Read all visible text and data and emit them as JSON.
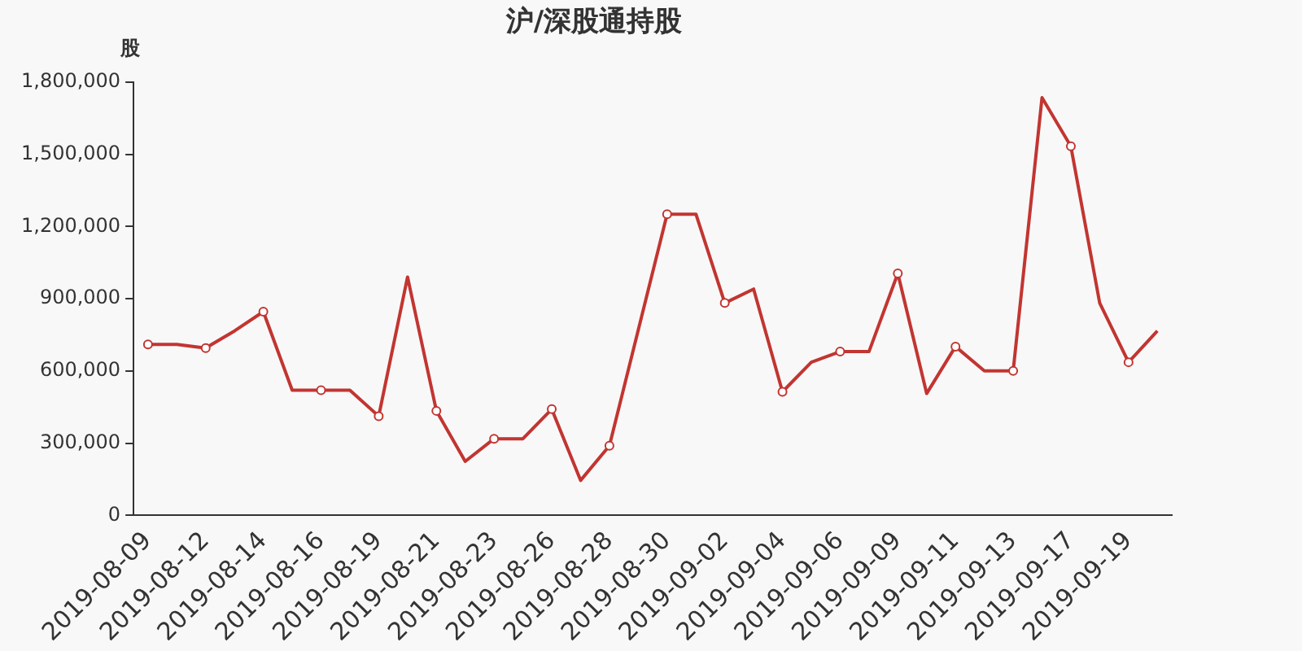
{
  "chart_data": {
    "type": "line",
    "title": "沪/深股通持股",
    "ylabel": "股",
    "categories": [
      "2019-08-09",
      null,
      "2019-08-12",
      null,
      "2019-08-14",
      null,
      "2019-08-16",
      null,
      "2019-08-19",
      null,
      "2019-08-21",
      null,
      "2019-08-23",
      null,
      "2019-08-26",
      null,
      "2019-08-28",
      null,
      "2019-08-30",
      null,
      "2019-09-02",
      null,
      "2019-09-04",
      null,
      "2019-09-06",
      null,
      "2019-09-09",
      null,
      "2019-09-11",
      null,
      "2019-09-13",
      null,
      "2019-09-17",
      null,
      "2019-09-19",
      null
    ],
    "series": [
      {
        "color": "#c23531",
        "values": [
          710000,
          710000,
          695000,
          766000,
          846000,
          520000,
          520000,
          520000,
          412000,
          990000,
          434000,
          224000,
          318000,
          318000,
          441000,
          145000,
          289000,
          770000,
          1251000,
          1251000,
          882000,
          940000,
          513000,
          636000,
          680000,
          680000,
          1005000,
          506000,
          701000,
          600000,
          600000,
          1735000,
          1533000,
          882000,
          636000,
          766000
        ]
      }
    ],
    "ylim": [
      0,
      1800000
    ],
    "yticks": [
      0,
      {
        "value": 300000,
        "label": "300,000"
      },
      {
        "value": 600000,
        "label": "600,000"
      },
      {
        "value": 900000,
        "label": "900,000"
      },
      {
        "value": 1200000,
        "label": "1,200,000"
      },
      {
        "value": 1500000,
        "label": "1,500,000"
      },
      {
        "value": 1800000,
        "label": "1,800,000"
      }
    ],
    "grid": false,
    "legend": false,
    "marker": "circle",
    "line_style": "solid"
  }
}
